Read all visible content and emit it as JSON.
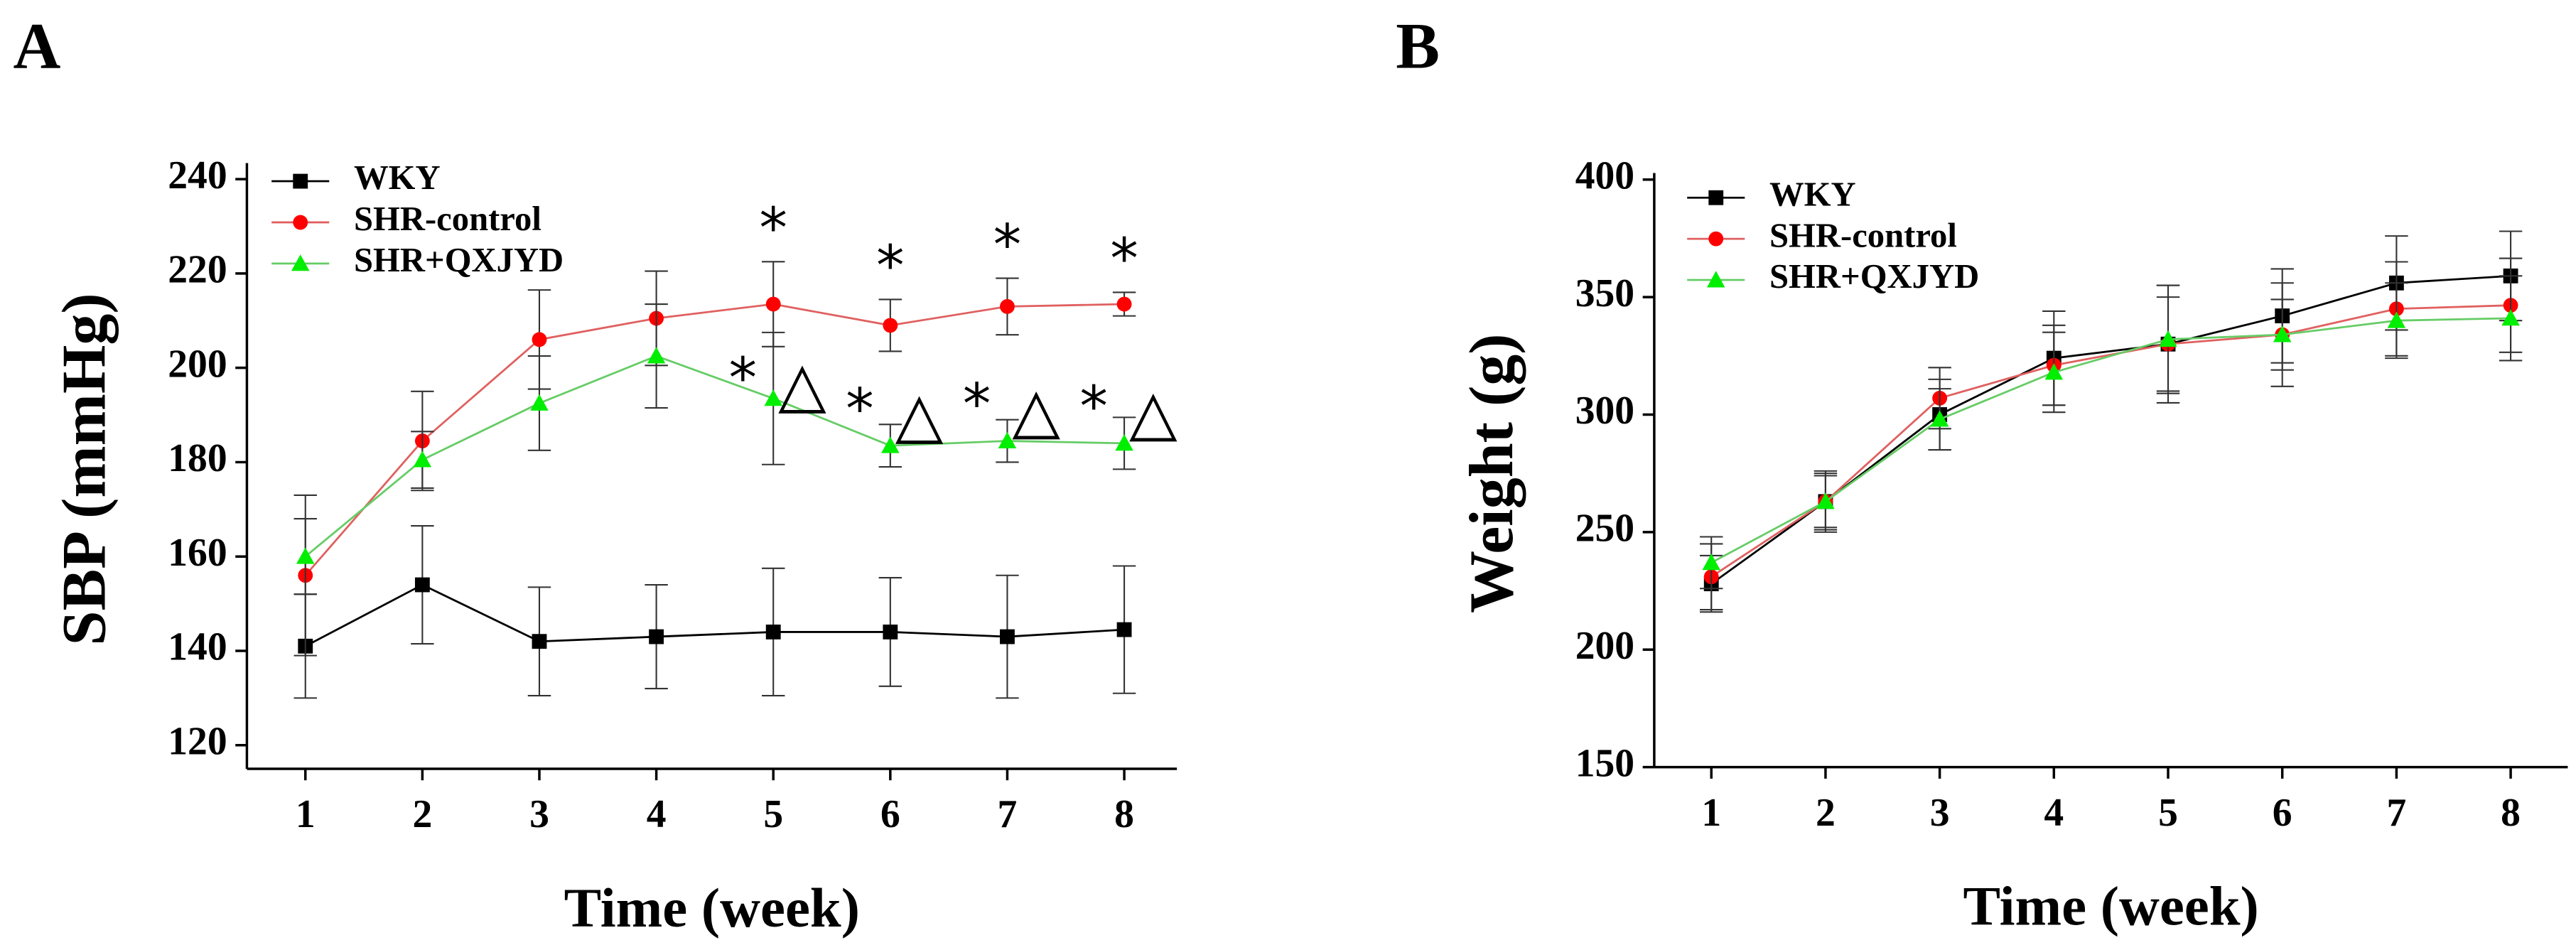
{
  "chart_data": [
    {
      "type": "line",
      "panel_label": "A",
      "xlabel": "Time (week)",
      "ylabel": "SBP (mmHg)",
      "x": [
        1,
        2,
        3,
        4,
        5,
        6,
        7,
        8
      ],
      "xlim": [
        0.5,
        8.45
      ],
      "xticks": [
        1,
        2,
        3,
        4,
        5,
        6,
        7,
        8
      ],
      "ylim": [
        115,
        242
      ],
      "yticks": [
        120,
        140,
        160,
        180,
        200,
        220,
        240
      ],
      "legend": "upper left",
      "series": [
        {
          "name": "WKY",
          "color": "#000000",
          "line_color": "#000000",
          "marker": "square",
          "values": [
            141,
            154,
            142,
            143,
            144,
            144,
            143,
            144.5
          ],
          "errors": [
            11,
            12.5,
            11.5,
            11,
            13.5,
            11.5,
            13,
            13.5
          ]
        },
        {
          "name": "SHR-control",
          "color": "#ff0000",
          "line_color": "#e06060",
          "marker": "circle",
          "values": [
            156,
            184.5,
            206,
            210.5,
            213.5,
            209,
            213,
            213.5
          ],
          "errors": [
            17,
            10.5,
            10.5,
            10,
            9,
            5.5,
            6,
            2.5
          ],
          "annotations": [
            null,
            null,
            null,
            null,
            [
              "*"
            ],
            [
              "*"
            ],
            [
              "*"
            ],
            [
              "*"
            ]
          ]
        },
        {
          "name": "SHR+QXJYD",
          "color": "#00ee00",
          "line_color": "#66cc66",
          "marker": "triangle",
          "values": [
            160,
            180.5,
            192.5,
            202.5,
            193.5,
            183.5,
            184.5,
            184
          ],
          "errors": [
            8,
            6,
            10,
            11,
            14,
            4.5,
            4.5,
            5.5
          ],
          "annotations": [
            null,
            null,
            null,
            null,
            [
              "*",
              "△"
            ],
            [
              "*",
              "△"
            ],
            [
              "*",
              "△"
            ],
            [
              "*",
              "△"
            ]
          ]
        }
      ]
    },
    {
      "type": "line",
      "panel_label": "B",
      "xlabel": "Time (week)",
      "ylabel": "Weight (g)",
      "x": [
        1,
        2,
        3,
        4,
        5,
        6,
        7,
        8
      ],
      "xlim": [
        0.5,
        8.5
      ],
      "xticks": [
        1,
        2,
        3,
        4,
        5,
        6,
        7,
        8
      ],
      "ylim": [
        150,
        400
      ],
      "yticks": [
        150,
        200,
        250,
        300,
        350,
        400
      ],
      "legend": "upper left",
      "series": [
        {
          "name": "WKY",
          "color": "#000000",
          "line_color": "#000000",
          "marker": "square",
          "values": [
            228,
            263,
            300,
            324,
            330,
            342,
            356,
            359
          ],
          "errors": [
            12,
            13,
            15,
            20,
            20,
            20,
            20,
            19
          ]
        },
        {
          "name": "SHR-control",
          "color": "#ff0000",
          "line_color": "#e06060",
          "marker": "circle",
          "values": [
            231,
            263,
            307,
            321,
            330,
            334,
            345,
            346.5
          ],
          "errors": [
            14,
            12,
            13,
            17,
            25,
            15,
            20,
            20
          ]
        },
        {
          "name": "SHR+QXJYD",
          "color": "#00ee00",
          "line_color": "#66cc66",
          "marker": "triangle",
          "values": [
            237,
            263,
            298,
            318,
            332,
            334,
            340,
            341
          ],
          "errors": [
            11,
            11,
            13,
            17,
            23,
            22,
            16,
            18
          ]
        }
      ]
    }
  ]
}
